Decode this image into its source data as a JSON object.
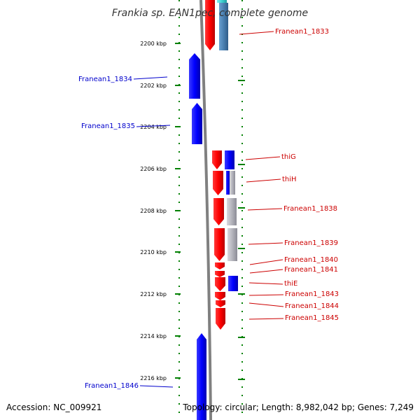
{
  "title": "Frankia sp. EAN1pec, complete genome",
  "accession": "Accession: NC_009921",
  "summary": "Topology: circular; Length: 8,982,042 bp; Genes: 7,249",
  "ruler_ticks": [
    {
      "kbp": 2200,
      "label": "2200 kbp"
    },
    {
      "kbp": 2202,
      "label": "2202 kbp"
    },
    {
      "kbp": 2204,
      "label": "2204 kbp"
    },
    {
      "kbp": 2206,
      "label": "2206 kbp"
    },
    {
      "kbp": 2208,
      "label": "2208 kbp"
    },
    {
      "kbp": 2210,
      "label": "2210 kbp"
    },
    {
      "kbp": 2212,
      "label": "2212 kbp"
    },
    {
      "kbp": 2214,
      "label": "2214 kbp"
    },
    {
      "kbp": 2216,
      "label": "2216 kbp"
    }
  ],
  "genes_left": [
    {
      "name": "Franean1_1834",
      "color": "#0000cc"
    },
    {
      "name": "Franean1_1835",
      "color": "#0000cc"
    },
    {
      "name": "Franean1_1846",
      "color": "#0000cc"
    }
  ],
  "genes_right": [
    {
      "name": "Franean1_1833",
      "color": "#cc0000"
    },
    {
      "name": "thiG",
      "color": "#cc0000"
    },
    {
      "name": "thiH",
      "color": "#cc0000"
    },
    {
      "name": "Franean1_1838",
      "color": "#cc0000"
    },
    {
      "name": "Franean1_1839",
      "color": "#cc0000"
    },
    {
      "name": "Franean1_1840",
      "color": "#cc0000"
    },
    {
      "name": "Franean1_1841",
      "color": "#cc0000"
    },
    {
      "name": "thiE",
      "color": "#cc0000"
    },
    {
      "name": "Franean1_1843",
      "color": "#cc0000"
    },
    {
      "name": "Franean1_1844",
      "color": "#cc0000"
    },
    {
      "name": "Franean1_1845",
      "color": "#cc0000"
    }
  ],
  "colors": {
    "forward_strand": "#ff0000",
    "reverse_strand": "#0000ff",
    "backbone": "#808080",
    "ruler": "#008000",
    "cog_gray": "#b0b0b8",
    "cog_steel": "#4a7fb0",
    "cog_cyan": "#3fd0d0"
  }
}
